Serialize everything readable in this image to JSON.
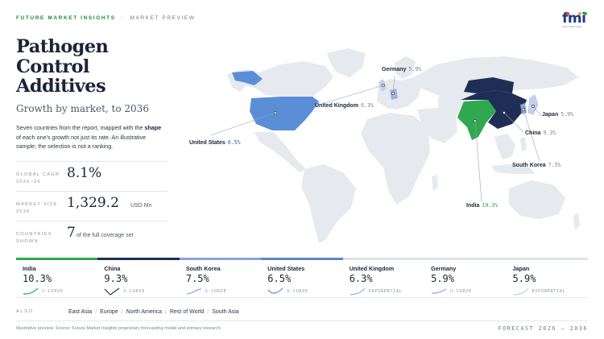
{
  "header": {
    "brand": "FUTURE MARKET INSIGHTS",
    "separator": "·",
    "section": "MARKET PREVIEW",
    "logo": {
      "word": "fmi",
      "tagline": "future market insights",
      "dot_colors": [
        "#e2462f",
        "#f2a33a",
        "#2fa84f"
      ]
    }
  },
  "title": {
    "line1": "Pathogen",
    "line2": "Control",
    "line3": "Additives",
    "subtitle": "Growth by market, to 2036"
  },
  "description": {
    "part1": "Seven countries from the report, mapped with the ",
    "bold": "shape",
    "part2": " of each one's growth not just its rate. An illustrative sample; the selection is not a ranking."
  },
  "stats": [
    {
      "label_line1": "GLOBAL CAGR",
      "label_line2": "2026–36",
      "value": "8.1%",
      "unit": ""
    },
    {
      "label_line1": "MARKET SIZE",
      "label_line2": "2036",
      "value": "1,329.2",
      "unit": "USD Mn"
    },
    {
      "label_line1": "COUNTRIES",
      "label_line2": "SHOWN",
      "value": "7",
      "unit": "of the full coverage set"
    }
  ],
  "map_labels": {
    "germany": {
      "name": "Germany",
      "value": "5.9%"
    },
    "united_kingdom": {
      "name": "United Kingdom",
      "value": "6.3%"
    },
    "japan": {
      "name": "Japan",
      "value": "5.9%"
    },
    "china": {
      "name": "China",
      "value": "9.3%"
    },
    "united_states": {
      "name": "United States",
      "value": "6.5%"
    },
    "south_korea": {
      "name": "South Korea",
      "value": "7.5%"
    },
    "india": {
      "name": "India",
      "value": "10.3%"
    }
  },
  "colors": {
    "india": "#2fa84f",
    "china": "#1f2e55",
    "united_states": "#5a8fd8",
    "south_korea": "#8aa4d8",
    "germany": "#9fb4de",
    "uk": "#c3d1ea",
    "japan": "#c3d1ea",
    "land": "#e6e9ee"
  },
  "tiles": [
    {
      "name": "India",
      "value": "10.3%",
      "shape": "J-CURVE"
    },
    {
      "name": "China",
      "value": "9.3%",
      "shape": "V-CURVE"
    },
    {
      "name": "South Korea",
      "value": "7.5%",
      "shape": "S-CURVE"
    },
    {
      "name": "United States",
      "value": "6.5%",
      "shape": "U-CURVE"
    },
    {
      "name": "United Kingdom",
      "value": "6.3%",
      "shape": "EXPONENTIAL"
    },
    {
      "name": "Germany",
      "value": "5.9%",
      "shape": "U-CURVE"
    },
    {
      "name": "Japan",
      "value": "5.9%",
      "shape": "EXPONENTIAL"
    }
  ],
  "also": {
    "label": "ALSO",
    "items": [
      "East Asia",
      "Europe",
      "North America",
      "Rest of World",
      "South Asia"
    ]
  },
  "footer": {
    "source": "Illustrative preview. Source: Future Market Insights proprietary forecasting model and primary research.",
    "forecast": "FORECAST 2026 – 2036"
  }
}
